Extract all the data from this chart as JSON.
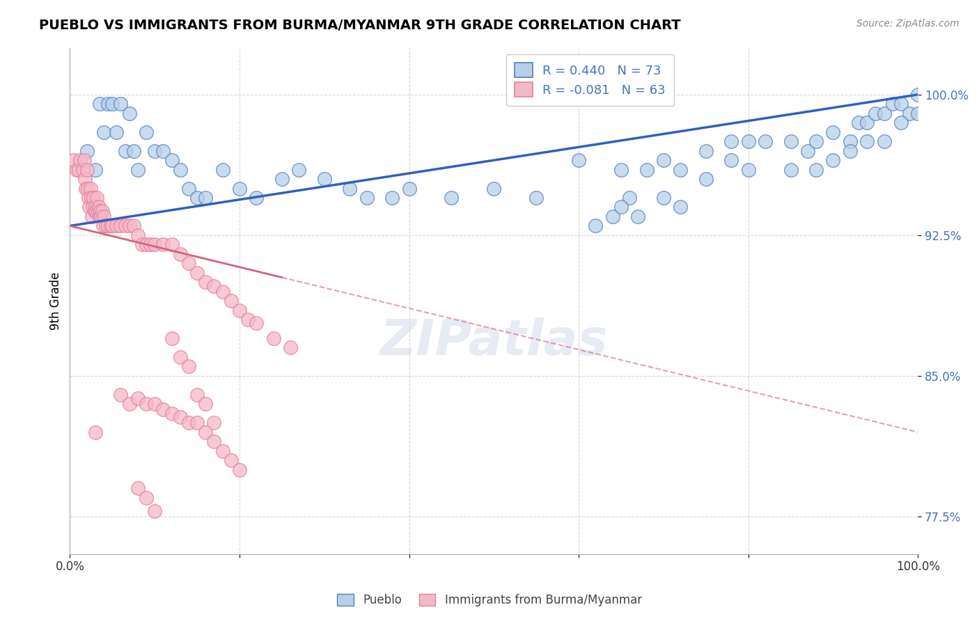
{
  "title": "PUEBLO VS IMMIGRANTS FROM BURMA/MYANMAR 9TH GRADE CORRELATION CHART",
  "source": "Source: ZipAtlas.com",
  "ylabel": "9th Grade",
  "xlim": [
    0.0,
    1.0
  ],
  "ylim": [
    0.755,
    1.025
  ],
  "yticks": [
    0.775,
    0.85,
    0.925,
    1.0
  ],
  "xticks": [
    0.0,
    0.2,
    0.4,
    0.6,
    0.8,
    1.0
  ],
  "blue_R": 0.44,
  "blue_N": 73,
  "pink_R": -0.081,
  "pink_N": 63,
  "blue_color": "#b8cfe8",
  "pink_color": "#f5b8c8",
  "blue_edge_color": "#5080c0",
  "pink_edge_color": "#e080a0",
  "blue_line_color": "#3060c0",
  "pink_line_color": "#d86080",
  "blue_label": "Pueblo",
  "pink_label": "Immigrants from Burma/Myanmar",
  "background_color": "#ffffff",
  "grid_color": "#cccccc",
  "blue_line_y0": 0.93,
  "blue_line_y1": 1.0,
  "pink_line_y0": 0.93,
  "pink_line_y1": 0.82,
  "blue_scatter_x": [
    0.02,
    0.03,
    0.035,
    0.04,
    0.045,
    0.05,
    0.055,
    0.06,
    0.065,
    0.07,
    0.075,
    0.08,
    0.09,
    0.1,
    0.11,
    0.12,
    0.13,
    0.14,
    0.15,
    0.16,
    0.18,
    0.2,
    0.22,
    0.25,
    0.27,
    0.3,
    0.33,
    0.35,
    0.38,
    0.4,
    0.45,
    0.5,
    0.55,
    0.6,
    0.65,
    0.68,
    0.7,
    0.72,
    0.75,
    0.78,
    0.8,
    0.82,
    0.85,
    0.87,
    0.88,
    0.9,
    0.92,
    0.93,
    0.94,
    0.95,
    0.96,
    0.97,
    0.98,
    0.99,
    1.0,
    0.62,
    0.64,
    0.66,
    0.7,
    0.72,
    0.75,
    0.78,
    0.8,
    0.85,
    0.88,
    0.9,
    0.92,
    0.94,
    0.96,
    0.98,
    1.0,
    0.65,
    0.67
  ],
  "blue_scatter_y": [
    0.97,
    0.96,
    0.995,
    0.98,
    0.995,
    0.995,
    0.98,
    0.995,
    0.97,
    0.99,
    0.97,
    0.96,
    0.98,
    0.97,
    0.97,
    0.965,
    0.96,
    0.95,
    0.945,
    0.945,
    0.96,
    0.95,
    0.945,
    0.955,
    0.96,
    0.955,
    0.95,
    0.945,
    0.945,
    0.95,
    0.945,
    0.95,
    0.945,
    0.965,
    0.96,
    0.96,
    0.965,
    0.96,
    0.97,
    0.975,
    0.975,
    0.975,
    0.975,
    0.97,
    0.975,
    0.98,
    0.975,
    0.985,
    0.985,
    0.99,
    0.99,
    0.995,
    0.995,
    0.99,
    1.0,
    0.93,
    0.935,
    0.945,
    0.945,
    0.94,
    0.955,
    0.965,
    0.96,
    0.96,
    0.96,
    0.965,
    0.97,
    0.975,
    0.975,
    0.985,
    0.99,
    0.94,
    0.935
  ],
  "pink_scatter_x": [
    0.005,
    0.008,
    0.01,
    0.012,
    0.015,
    0.017,
    0.018,
    0.019,
    0.02,
    0.021,
    0.022,
    0.023,
    0.024,
    0.025,
    0.026,
    0.027,
    0.028,
    0.029,
    0.03,
    0.031,
    0.032,
    0.033,
    0.034,
    0.035,
    0.036,
    0.037,
    0.038,
    0.039,
    0.04,
    0.042,
    0.045,
    0.048,
    0.05,
    0.055,
    0.06,
    0.065,
    0.07,
    0.075,
    0.08,
    0.085,
    0.09,
    0.095,
    0.1,
    0.11,
    0.12,
    0.13,
    0.14,
    0.15,
    0.16,
    0.17,
    0.18,
    0.19,
    0.2,
    0.21,
    0.22,
    0.24,
    0.26,
    0.12,
    0.13,
    0.14,
    0.15,
    0.16,
    0.17
  ],
  "pink_scatter_y": [
    0.965,
    0.96,
    0.96,
    0.965,
    0.96,
    0.965,
    0.955,
    0.95,
    0.96,
    0.95,
    0.945,
    0.94,
    0.95,
    0.945,
    0.935,
    0.94,
    0.945,
    0.938,
    0.94,
    0.938,
    0.945,
    0.938,
    0.94,
    0.935,
    0.938,
    0.935,
    0.938,
    0.93,
    0.935,
    0.93,
    0.93,
    0.93,
    0.93,
    0.93,
    0.93,
    0.93,
    0.93,
    0.93,
    0.925,
    0.92,
    0.92,
    0.92,
    0.92,
    0.92,
    0.92,
    0.915,
    0.91,
    0.905,
    0.9,
    0.898,
    0.895,
    0.89,
    0.885,
    0.88,
    0.878,
    0.87,
    0.865,
    0.87,
    0.86,
    0.855,
    0.84,
    0.835,
    0.825
  ],
  "pink_low_x": [
    0.03,
    0.06,
    0.07,
    0.08,
    0.09,
    0.1,
    0.11,
    0.12,
    0.13,
    0.14,
    0.15,
    0.16,
    0.17,
    0.18,
    0.19,
    0.2,
    0.08,
    0.09,
    0.1
  ],
  "pink_low_y": [
    0.82,
    0.84,
    0.835,
    0.838,
    0.835,
    0.835,
    0.832,
    0.83,
    0.828,
    0.825,
    0.825,
    0.82,
    0.815,
    0.81,
    0.805,
    0.8,
    0.79,
    0.785,
    0.778
  ]
}
